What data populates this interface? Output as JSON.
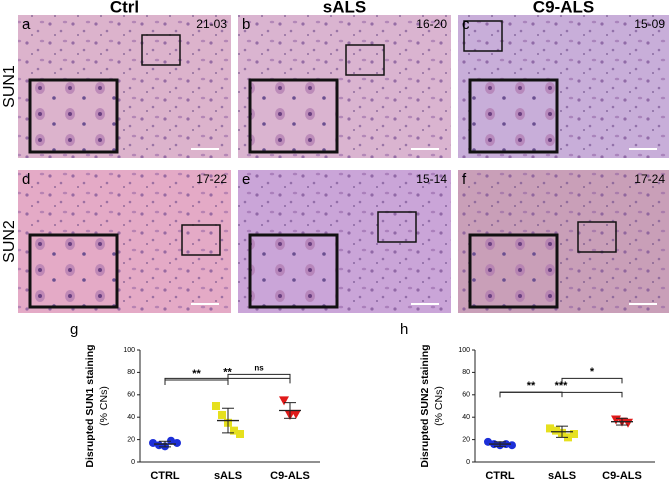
{
  "columns": [
    "Ctrl",
    "sALS",
    "C9-ALS"
  ],
  "rows": [
    "SUN1",
    "SUN2"
  ],
  "panels": [
    {
      "letter": "a",
      "id": "21-03"
    },
    {
      "letter": "b",
      "id": "16-20"
    },
    {
      "letter": "c",
      "id": "15-09"
    },
    {
      "letter": "d",
      "id": "17-22"
    },
    {
      "letter": "e",
      "id": "15-14"
    },
    {
      "letter": "f",
      "id": "17-24"
    }
  ],
  "chart_data": [
    {
      "type": "dot",
      "panel": "g",
      "ylabel": [
        "Disrupted SUN1 staining",
        "(% CNs)"
      ],
      "categories": [
        "CTRL",
        "sALS",
        "C9-ALS"
      ],
      "values": [
        [
          17,
          15,
          14,
          19,
          17
        ],
        [
          50,
          42,
          35,
          28,
          25
        ],
        [
          55,
          42,
          43
        ]
      ],
      "means": [
        16,
        37,
        46
      ],
      "errors": [
        2.5,
        11,
        7
      ],
      "colors": [
        "#1c2fd8",
        "#e6e01e",
        "#e01a1a"
      ],
      "markers": [
        "circle",
        "square",
        "triangle"
      ],
      "ylim": [
        0,
        100
      ],
      "yticks": [
        0,
        20,
        40,
        60,
        80,
        100
      ],
      "brackets": [
        {
          "from": "CTRL",
          "to": "sALS",
          "label": "**"
        },
        {
          "from": "sALS",
          "to": "C9-ALS",
          "label": "ns"
        },
        {
          "from": "CTRL",
          "to": "C9-ALS",
          "label": "**"
        }
      ]
    },
    {
      "type": "dot",
      "panel": "h",
      "ylabel": [
        "Disrupted SUN2 staining",
        "(% CNs)"
      ],
      "categories": [
        "CTRL",
        "sALS",
        "C9-ALS"
      ],
      "values": [
        [
          18,
          16,
          15,
          16,
          15
        ],
        [
          30,
          28,
          26,
          22,
          25
        ],
        [
          38,
          36,
          35
        ]
      ],
      "means": [
        16,
        27,
        36
      ],
      "errors": [
        2,
        5,
        3
      ],
      "colors": [
        "#1c2fd8",
        "#e6e01e",
        "#e01a1a"
      ],
      "markers": [
        "circle",
        "square",
        "triangle"
      ],
      "ylim": [
        0,
        100
      ],
      "yticks": [
        0,
        20,
        40,
        60,
        80,
        100
      ],
      "brackets": [
        {
          "from": "CTRL",
          "to": "sALS",
          "label": "**"
        },
        {
          "from": "sALS",
          "to": "C9-ALS",
          "label": "*"
        },
        {
          "from": "CTRL",
          "to": "C9-ALS",
          "label": "***"
        }
      ]
    }
  ]
}
